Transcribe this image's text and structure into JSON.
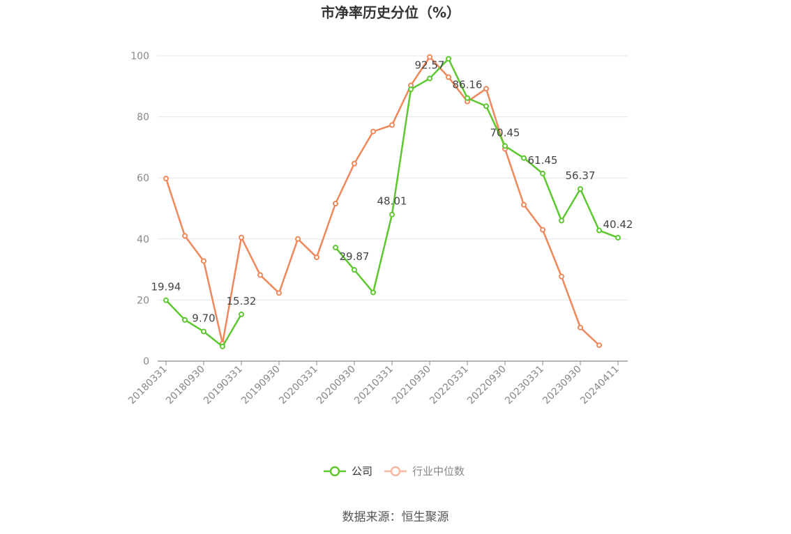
{
  "chart_data": {
    "type": "line",
    "title": "市净率历史分位（%）",
    "ylim": [
      0,
      100
    ],
    "yticks": [
      "0",
      "20",
      "40",
      "60",
      "80",
      "100"
    ],
    "grid": true,
    "legend_position": "bottom-center",
    "x": [
      "20180331",
      "20180630",
      "20180930",
      "20181231",
      "20190331",
      "20190630",
      "20190930",
      "20191231",
      "20200331",
      "20200630",
      "20200930",
      "20201231",
      "20210331",
      "20210630",
      "20210930",
      "20211231",
      "20220331",
      "20220630",
      "20220930",
      "20221231",
      "20230331",
      "20230630",
      "20230930",
      "20231231",
      "20240411"
    ],
    "xtick_labels": [
      "20180331",
      "20180930",
      "20190331",
      "20190930",
      "20200331",
      "20200930",
      "20210331",
      "20210930",
      "20220331",
      "20220930",
      "20230331",
      "20230930",
      "20240411"
    ],
    "xtick_indices": [
      0,
      2,
      4,
      6,
      8,
      10,
      12,
      14,
      16,
      18,
      20,
      22,
      24
    ],
    "series": [
      {
        "name": "公司",
        "color": "#5cc72e",
        "values": [
          19.94,
          13.5,
          9.7,
          4.8,
          15.32,
          null,
          null,
          null,
          null,
          37.2,
          29.87,
          22.5,
          48.01,
          89.0,
          92.57,
          99.0,
          86.16,
          83.5,
          70.45,
          66.5,
          61.45,
          46.0,
          56.37,
          42.8,
          40.42
        ],
        "data_labels": [
          {
            "index": 0,
            "text": "19.94"
          },
          {
            "index": 2,
            "text": "9.70"
          },
          {
            "index": 4,
            "text": "15.32"
          },
          {
            "index": 10,
            "text": "29.87"
          },
          {
            "index": 12,
            "text": "48.01"
          },
          {
            "index": 14,
            "text": "92.57"
          },
          {
            "index": 16,
            "text": "86.16"
          },
          {
            "index": 18,
            "text": "70.45"
          },
          {
            "index": 20,
            "text": "61.45"
          },
          {
            "index": 22,
            "text": "56.37"
          },
          {
            "index": 24,
            "text": "40.42"
          }
        ]
      },
      {
        "name": "行业中位数",
        "color": "#f0875a",
        "values": [
          59.8,
          41.0,
          32.8,
          5.8,
          40.5,
          28.2,
          22.3,
          40.0,
          34.0,
          51.6,
          64.7,
          75.2,
          77.3,
          90.3,
          99.6,
          93.0,
          85.0,
          89.2,
          69.5,
          51.2,
          43.0,
          27.7,
          11.0,
          5.2,
          null
        ]
      }
    ]
  },
  "legend": {
    "company_label": "公司",
    "company_color": "#5cc72e",
    "industry_label": "行业中位数",
    "industry_color": "#f7b8a0"
  },
  "source_text": "数据来源：恒生聚源"
}
